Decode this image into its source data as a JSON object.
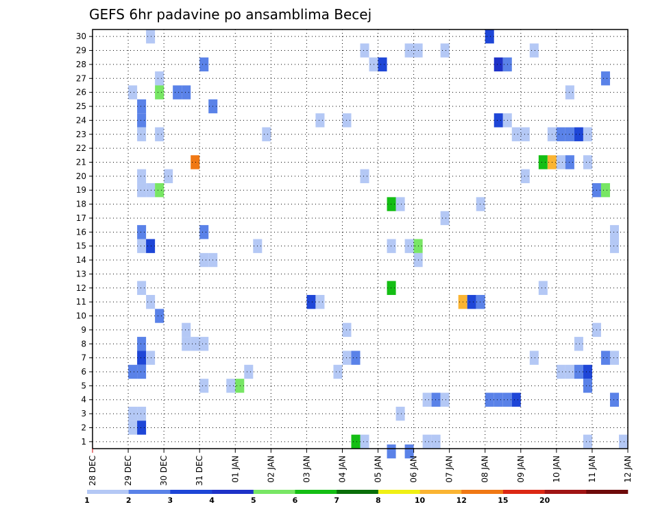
{
  "chart_data": {
    "type": "heatmap",
    "title": "GEFS 6hr padavine po ansamblima Becej",
    "xlabel": "",
    "ylabel": "",
    "x_ticks": [
      "28 DEC",
      "29 DEC",
      "30 DEC",
      "31 DEC",
      "01 JAN",
      "02 JAN",
      "03 JAN",
      "04 JAN",
      "05 JAN",
      "06 JAN",
      "07 JAN",
      "08 JAN",
      "09 JAN",
      "10 JAN",
      "11 JAN",
      "12 JAN"
    ],
    "y_ticks": [
      "1",
      "2",
      "3",
      "4",
      "5",
      "6",
      "7",
      "8",
      "9",
      "10",
      "11",
      "12",
      "13",
      "14",
      "15",
      "16",
      "17",
      "18",
      "19",
      "20",
      "21",
      "22",
      "23",
      "24",
      "25",
      "26",
      "27",
      "28",
      "29",
      "30"
    ],
    "xlim": [
      0,
      60
    ],
    "ylim": [
      0.5,
      30.5
    ],
    "grid": true,
    "colorbar": {
      "levels": [
        "1",
        "2",
        "3",
        "4",
        "5",
        "6",
        "7",
        "8",
        "10",
        "12",
        "15",
        "20"
      ],
      "colors": [
        "#b4c8f5",
        "#5a82e8",
        "#1e46d7",
        "#1e32c8",
        "#78e664",
        "#14be14",
        "#096e09",
        "#f0f014",
        "#fab432",
        "#f07814",
        "#dc2814",
        "#a01414",
        "#6e0a0a"
      ]
    },
    "cells": [
      [
        6.5,
        30,
        1
      ],
      [
        44.5,
        30,
        3
      ],
      [
        30.5,
        29,
        1
      ],
      [
        35.5,
        29,
        1
      ],
      [
        36.5,
        29,
        1
      ],
      [
        39.5,
        29,
        1
      ],
      [
        49.5,
        29,
        1
      ],
      [
        12.5,
        28,
        2
      ],
      [
        31.5,
        28,
        1
      ],
      [
        32.5,
        28,
        3
      ],
      [
        45.5,
        28,
        4
      ],
      [
        46.5,
        28,
        2
      ],
      [
        7.5,
        27,
        1
      ],
      [
        57.5,
        27,
        2
      ],
      [
        4.5,
        26,
        1
      ],
      [
        7.5,
        26,
        5
      ],
      [
        9.5,
        26,
        2
      ],
      [
        10.5,
        26,
        2
      ],
      [
        53.5,
        26,
        1
      ],
      [
        5.5,
        25,
        2
      ],
      [
        13.5,
        25,
        2
      ],
      [
        5.5,
        24,
        2
      ],
      [
        25.5,
        24,
        1
      ],
      [
        28.5,
        24,
        1
      ],
      [
        45.5,
        24,
        3
      ],
      [
        46.5,
        24,
        1
      ],
      [
        5.5,
        23,
        1
      ],
      [
        7.5,
        23,
        1
      ],
      [
        19.5,
        23,
        1
      ],
      [
        47.5,
        23,
        1
      ],
      [
        48.5,
        23,
        1
      ],
      [
        51.5,
        23,
        1
      ],
      [
        52.5,
        23,
        2
      ],
      [
        53.5,
        23,
        2
      ],
      [
        54.5,
        23,
        3
      ],
      [
        55.5,
        23,
        1
      ],
      [
        11.5,
        21,
        10
      ],
      [
        50.5,
        21,
        6
      ],
      [
        51.5,
        21,
        9
      ],
      [
        52.5,
        21,
        1
      ],
      [
        53.5,
        21,
        2
      ],
      [
        55.5,
        21,
        1
      ],
      [
        5.5,
        20,
        1
      ],
      [
        8.5,
        20,
        1
      ],
      [
        30.5,
        20,
        1
      ],
      [
        48.5,
        20,
        1
      ],
      [
        5.5,
        19,
        1
      ],
      [
        6.5,
        19,
        1
      ],
      [
        7.5,
        19,
        5
      ],
      [
        56.5,
        19,
        2
      ],
      [
        57.5,
        19,
        5
      ],
      [
        33.5,
        18,
        6
      ],
      [
        34.5,
        18,
        1
      ],
      [
        43.5,
        18,
        1
      ],
      [
        39.5,
        17,
        1
      ],
      [
        5.5,
        16,
        2
      ],
      [
        12.5,
        16,
        2
      ],
      [
        58.5,
        16,
        1
      ],
      [
        5.5,
        15,
        1
      ],
      [
        6.5,
        15,
        3
      ],
      [
        18.5,
        15,
        1
      ],
      [
        33.5,
        15,
        1
      ],
      [
        35.5,
        15,
        1
      ],
      [
        36.5,
        15,
        5
      ],
      [
        58.5,
        15,
        1
      ],
      [
        12.5,
        14,
        1
      ],
      [
        13.5,
        14,
        1
      ],
      [
        36.5,
        14,
        1
      ],
      [
        5.5,
        12,
        1
      ],
      [
        33.5,
        12,
        6
      ],
      [
        50.5,
        12,
        1
      ],
      [
        6.5,
        11,
        1
      ],
      [
        24.5,
        11,
        3
      ],
      [
        25.5,
        11,
        1
      ],
      [
        41.5,
        11,
        9
      ],
      [
        42.5,
        11,
        3
      ],
      [
        43.5,
        11,
        2
      ],
      [
        7.5,
        10,
        2
      ],
      [
        10.5,
        9,
        1
      ],
      [
        28.5,
        9,
        1
      ],
      [
        56.5,
        9,
        1
      ],
      [
        5.5,
        8,
        2
      ],
      [
        10.5,
        8,
        1
      ],
      [
        11.5,
        8,
        1
      ],
      [
        12.5,
        8,
        1
      ],
      [
        54.5,
        8,
        1
      ],
      [
        5.5,
        7,
        3
      ],
      [
        6.5,
        7,
        1
      ],
      [
        28.5,
        7,
        1
      ],
      [
        29.5,
        7,
        2
      ],
      [
        49.5,
        7,
        1
      ],
      [
        57.5,
        7,
        2
      ],
      [
        58.5,
        7,
        1
      ],
      [
        4.5,
        6,
        2
      ],
      [
        5.5,
        6,
        2
      ],
      [
        17.5,
        6,
        1
      ],
      [
        27.5,
        6,
        1
      ],
      [
        52.5,
        6,
        1
      ],
      [
        53.5,
        6,
        1
      ],
      [
        54.5,
        6,
        2
      ],
      [
        55.5,
        6,
        3
      ],
      [
        12.5,
        5,
        1
      ],
      [
        15.5,
        5,
        1
      ],
      [
        16.5,
        5,
        5
      ],
      [
        55.5,
        5,
        2
      ],
      [
        37.5,
        4,
        1
      ],
      [
        38.5,
        4,
        2
      ],
      [
        39.5,
        4,
        1
      ],
      [
        44.5,
        4,
        2
      ],
      [
        45.5,
        4,
        2
      ],
      [
        46.5,
        4,
        2
      ],
      [
        47.5,
        4,
        3
      ],
      [
        58.5,
        4,
        2
      ],
      [
        4.5,
        3,
        1
      ],
      [
        5.5,
        3,
        1
      ],
      [
        34.5,
        3,
        1
      ],
      [
        4.5,
        2,
        1
      ],
      [
        5.5,
        2,
        3
      ],
      [
        29.5,
        1,
        6
      ],
      [
        30.5,
        1,
        1
      ],
      [
        37.5,
        1,
        1
      ],
      [
        38.5,
        1,
        1
      ],
      [
        55.5,
        1,
        1
      ],
      [
        59.5,
        1,
        1
      ],
      [
        33.5,
        0.3,
        2
      ],
      [
        35.5,
        0.3,
        2
      ]
    ]
  }
}
